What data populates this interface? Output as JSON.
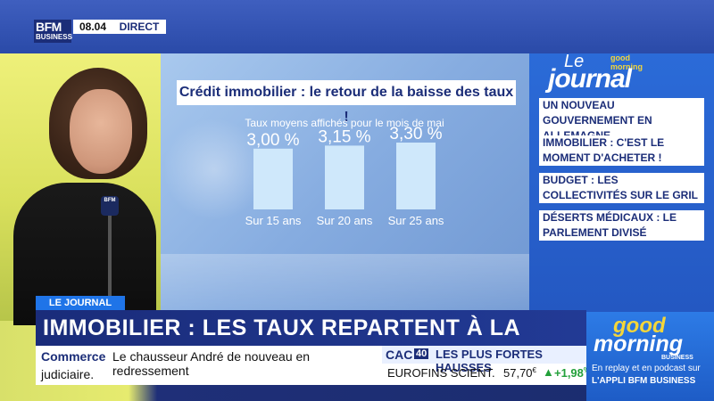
{
  "brand": {
    "logo_line1": "BFM",
    "logo_line2": "BUSINESS",
    "time": "08.04",
    "live": "DIRECT"
  },
  "chart_data": {
    "type": "bar",
    "title": "Crédit immobilier : le retour de la baisse des taux !",
    "subtitle": "Taux moyens affichés pour le mois de mai",
    "categories": [
      "Sur 15 ans",
      "Sur 20 ans",
      "Sur 25 ans"
    ],
    "values": [
      3.0,
      3.15,
      3.3
    ],
    "value_labels": [
      "3,00 %",
      "3,15 %",
      "3,30 %"
    ],
    "unit": "%",
    "bar_color": "#cfe8fb",
    "grid": false,
    "legend": "none"
  },
  "journal": {
    "le": "Le",
    "title": "journal",
    "logo_small": "good morning",
    "headlines": [
      "UN NOUVEAU GOUVERNEMENT EN ALLEMAGNE",
      "IMMOBILIER : C'EST LE MOMENT D'ACHETER !",
      "BUDGET : LES COLLECTIVITÉS SUR LE GRIL",
      "DÉSERTS MÉDICAUX : LE PARLEMENT DIVISÉ"
    ]
  },
  "lower_third": {
    "tag": "LE JOURNAL",
    "headline": "IMMOBILIER : LES TAUX REPARTENT À LA BAISSE",
    "ticker_label": "Commerce",
    "ticker_text": "Le chausseur André de nouveau en redressement",
    "ticker_text2": "judiciaire."
  },
  "market": {
    "index": "CAC",
    "index_num": "40",
    "title": "LES PLUS FORTES HAUSSES",
    "stock": "EUROFINS SCIENT.",
    "price": "57,70",
    "price_unit": "€",
    "arrow": "▲",
    "change": "+1,98",
    "change_unit": "%",
    "up_color": "#23a03a"
  },
  "promo": {
    "good": "good",
    "morning": "morning",
    "business": "BUSINESS",
    "line1": "En replay et en podcast sur",
    "line2": "L'APPLI BFM BUSINESS"
  }
}
